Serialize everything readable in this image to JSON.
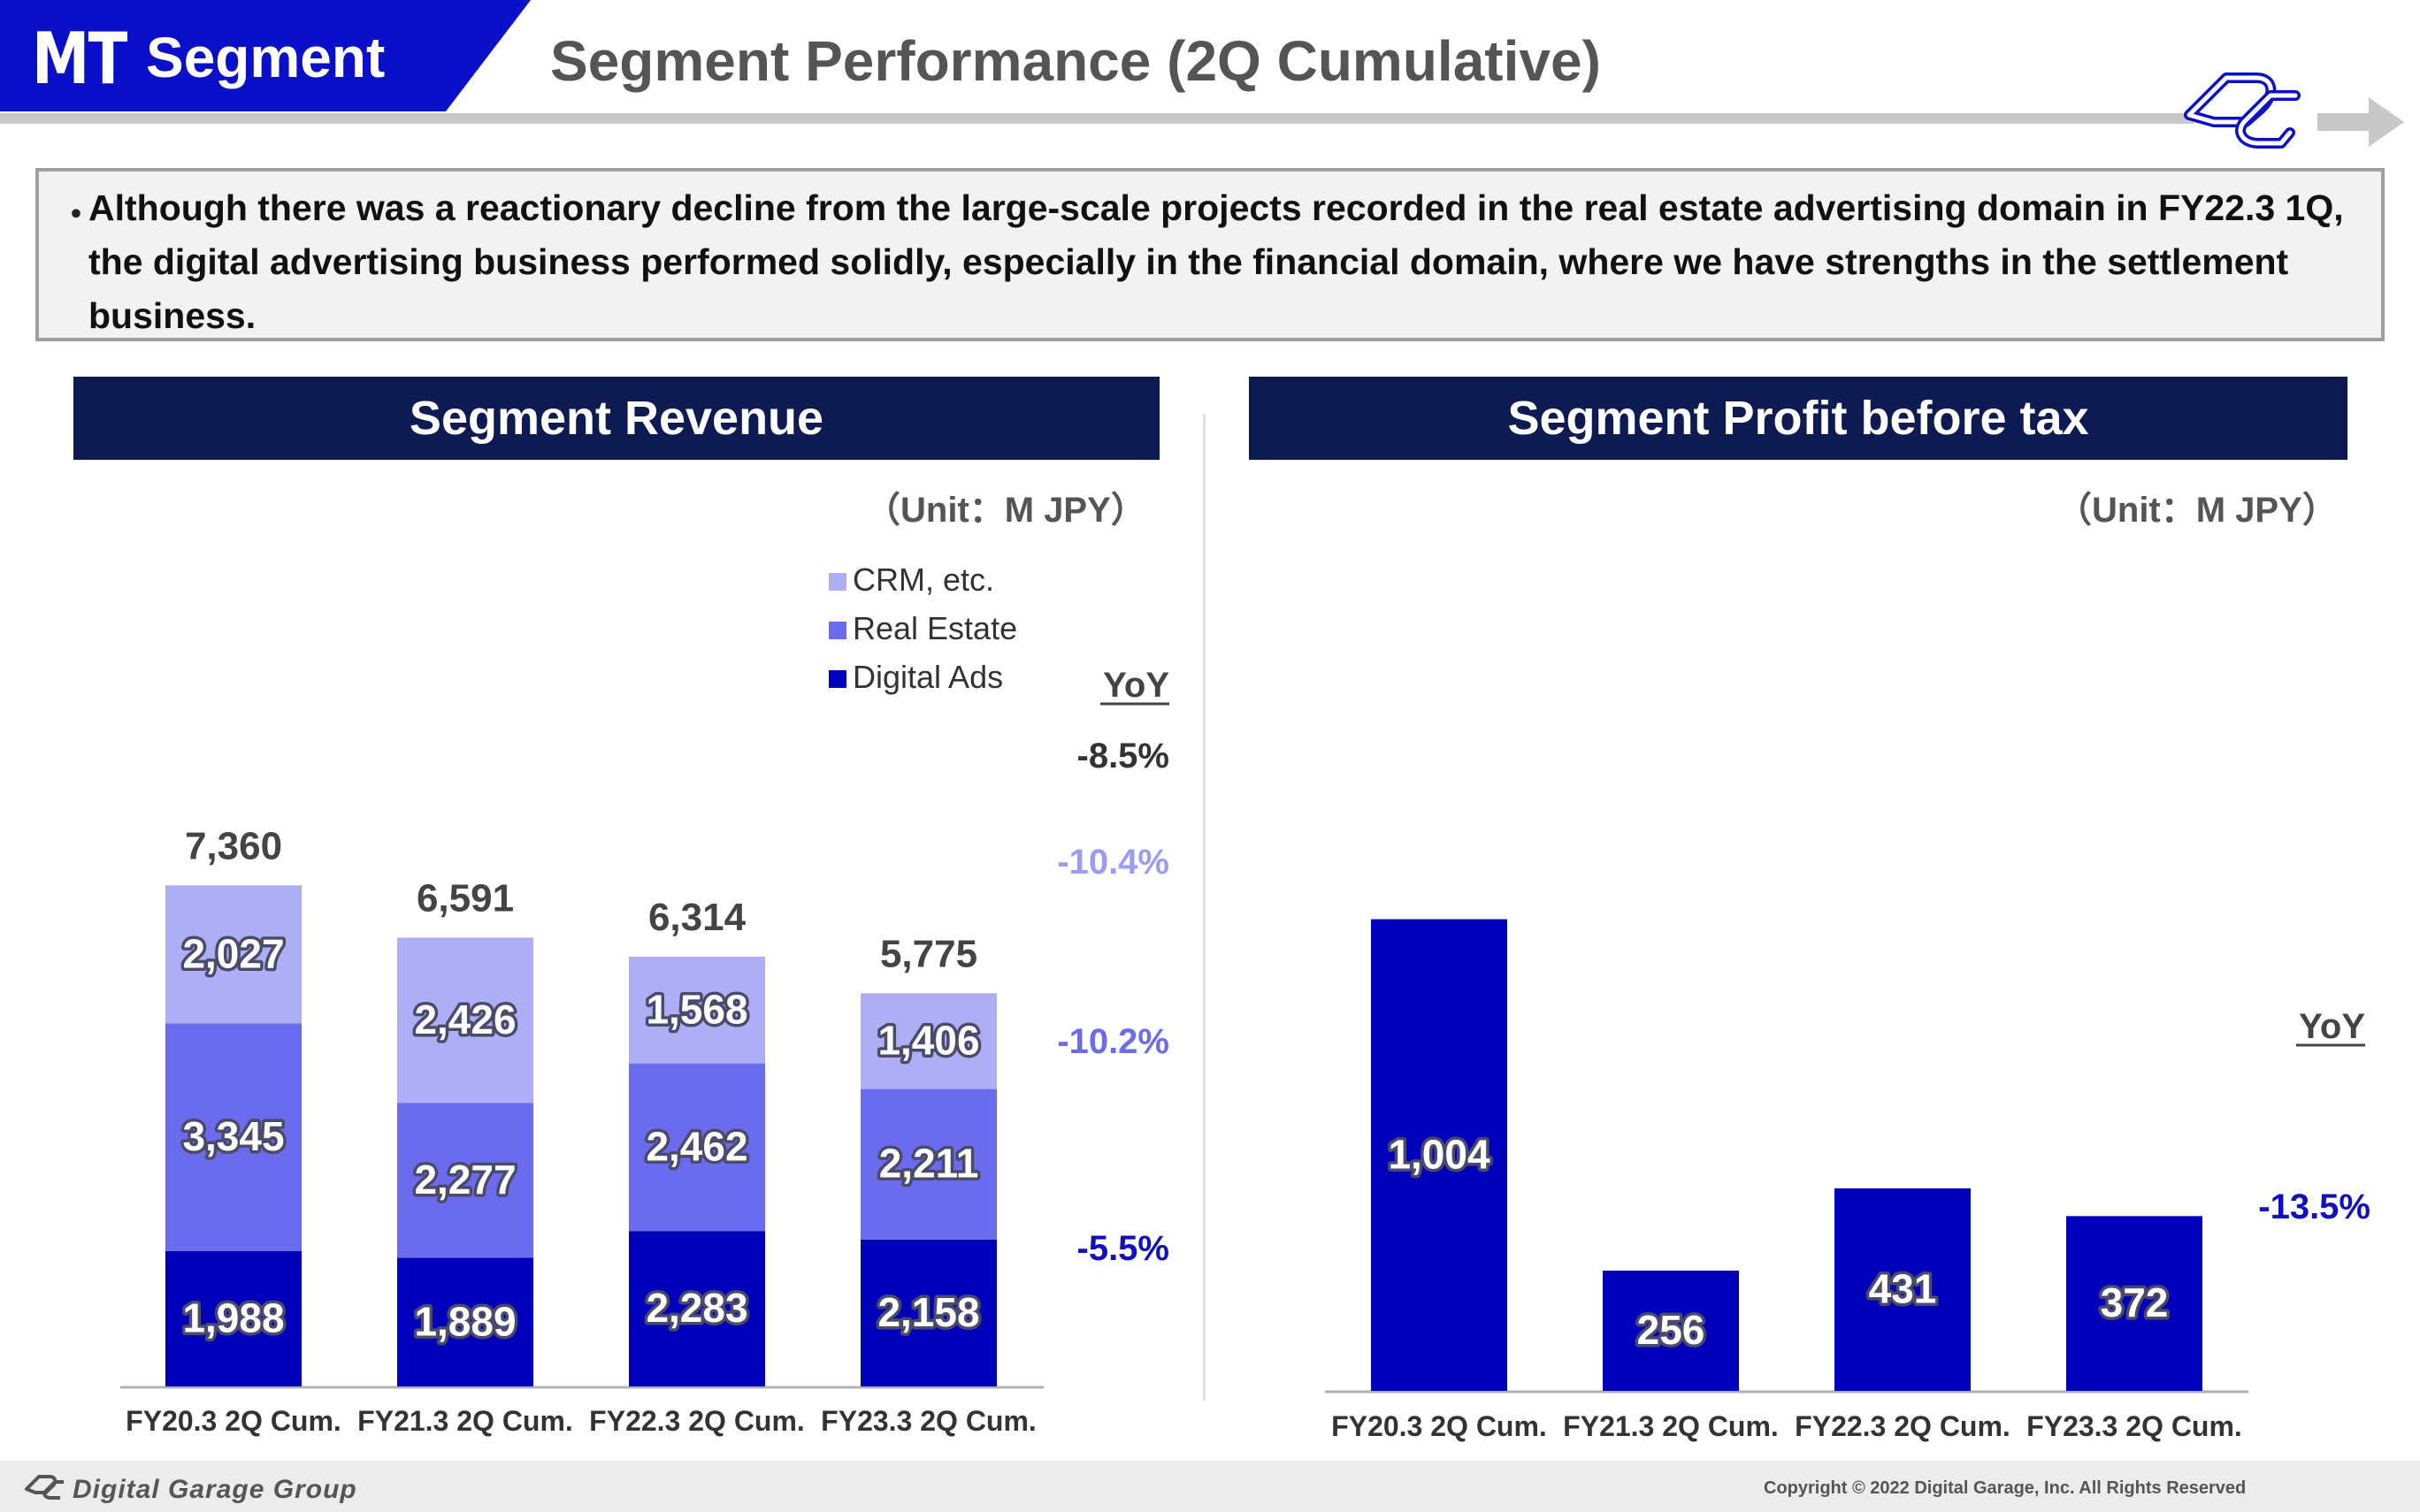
{
  "header": {
    "badge_abbrev": "MT",
    "badge_label": "Segment",
    "title": "Segment Performance (2Q Cumulative)",
    "logo_icon": "dg-logo-icon"
  },
  "summary": {
    "bullet": "・",
    "text": "Although there was a reactionary decline from the large-scale projects recorded in the real estate advertising domain in FY22.3 1Q, the digital advertising business performed solidly, especially in the financial domain, where we have strengths in the settlement business."
  },
  "colors": {
    "digital_ads": "#0000bb",
    "real_estate": "#6b6bee",
    "crm": "#aeaef5",
    "navy": "#0e1a52",
    "brand_blue": "#0a10c8"
  },
  "revenue": {
    "heading": "Segment Revenue",
    "unit": "（Unit：M JPY）",
    "yoy_label": "YoY"
  },
  "profit": {
    "heading": "Segment Profit before tax",
    "unit": "（Unit：M JPY）",
    "yoy_label": "YoY"
  },
  "chart_data": [
    {
      "type": "bar",
      "stacked": true,
      "title": "Segment Revenue",
      "unit": "（Unit：M JPY）",
      "categories": [
        "FY20.3 2Q Cum.",
        "FY21.3 2Q Cum.",
        "FY22.3 2Q Cum.",
        "FY23.3 2Q Cum."
      ],
      "series": [
        {
          "name": "Digital Ads",
          "values": [
            1988,
            1889,
            2283,
            2158
          ],
          "yoy": "-5.5%",
          "color": "#0000bb"
        },
        {
          "name": "Real Estate",
          "values": [
            3345,
            2277,
            2462,
            2211
          ],
          "yoy": "-10.2%",
          "color": "#6b6bee"
        },
        {
          "name": "CRM, etc.",
          "values": [
            2027,
            2426,
            1568,
            1406
          ],
          "yoy": "-10.4%",
          "color": "#aeaef5"
        }
      ],
      "value_labels": [
        [
          "1,988",
          "1,889",
          "2,283",
          "2,158"
        ],
        [
          "3,345",
          "2,277",
          "2,462",
          "2,211"
        ],
        [
          "2,027",
          "2,426",
          "1,568",
          "1,406"
        ]
      ],
      "totals": [
        7360,
        6591,
        6314,
        5775
      ],
      "total_labels": [
        "7,360",
        "6,591",
        "6,314",
        "5,775"
      ],
      "total_yoy": "-8.5%",
      "yoy_label": "YoY",
      "legend": [
        "CRM, etc.",
        "Real Estate",
        "Digital Ads"
      ],
      "legend_position": "top-right",
      "ylim": [
        0,
        8000
      ],
      "grid": false
    },
    {
      "type": "bar",
      "title": "Segment Profit before tax",
      "unit": "（Unit：M JPY）",
      "categories": [
        "FY20.3 2Q Cum.",
        "FY21.3 2Q Cum.",
        "FY22.3 2Q Cum.",
        "FY23.3 2Q Cum."
      ],
      "values": [
        1004,
        256,
        431,
        372
      ],
      "value_labels": [
        "1,004",
        "256",
        "431",
        "372"
      ],
      "yoy": "-13.5%",
      "yoy_label": "YoY",
      "color": "#0000bb",
      "ylim": [
        0,
        1100
      ],
      "grid": false
    }
  ],
  "footer": {
    "brand": "Digital Garage Group",
    "copyright": "Copyright © 2022 Digital Garage, Inc. All Rights Reserved"
  }
}
